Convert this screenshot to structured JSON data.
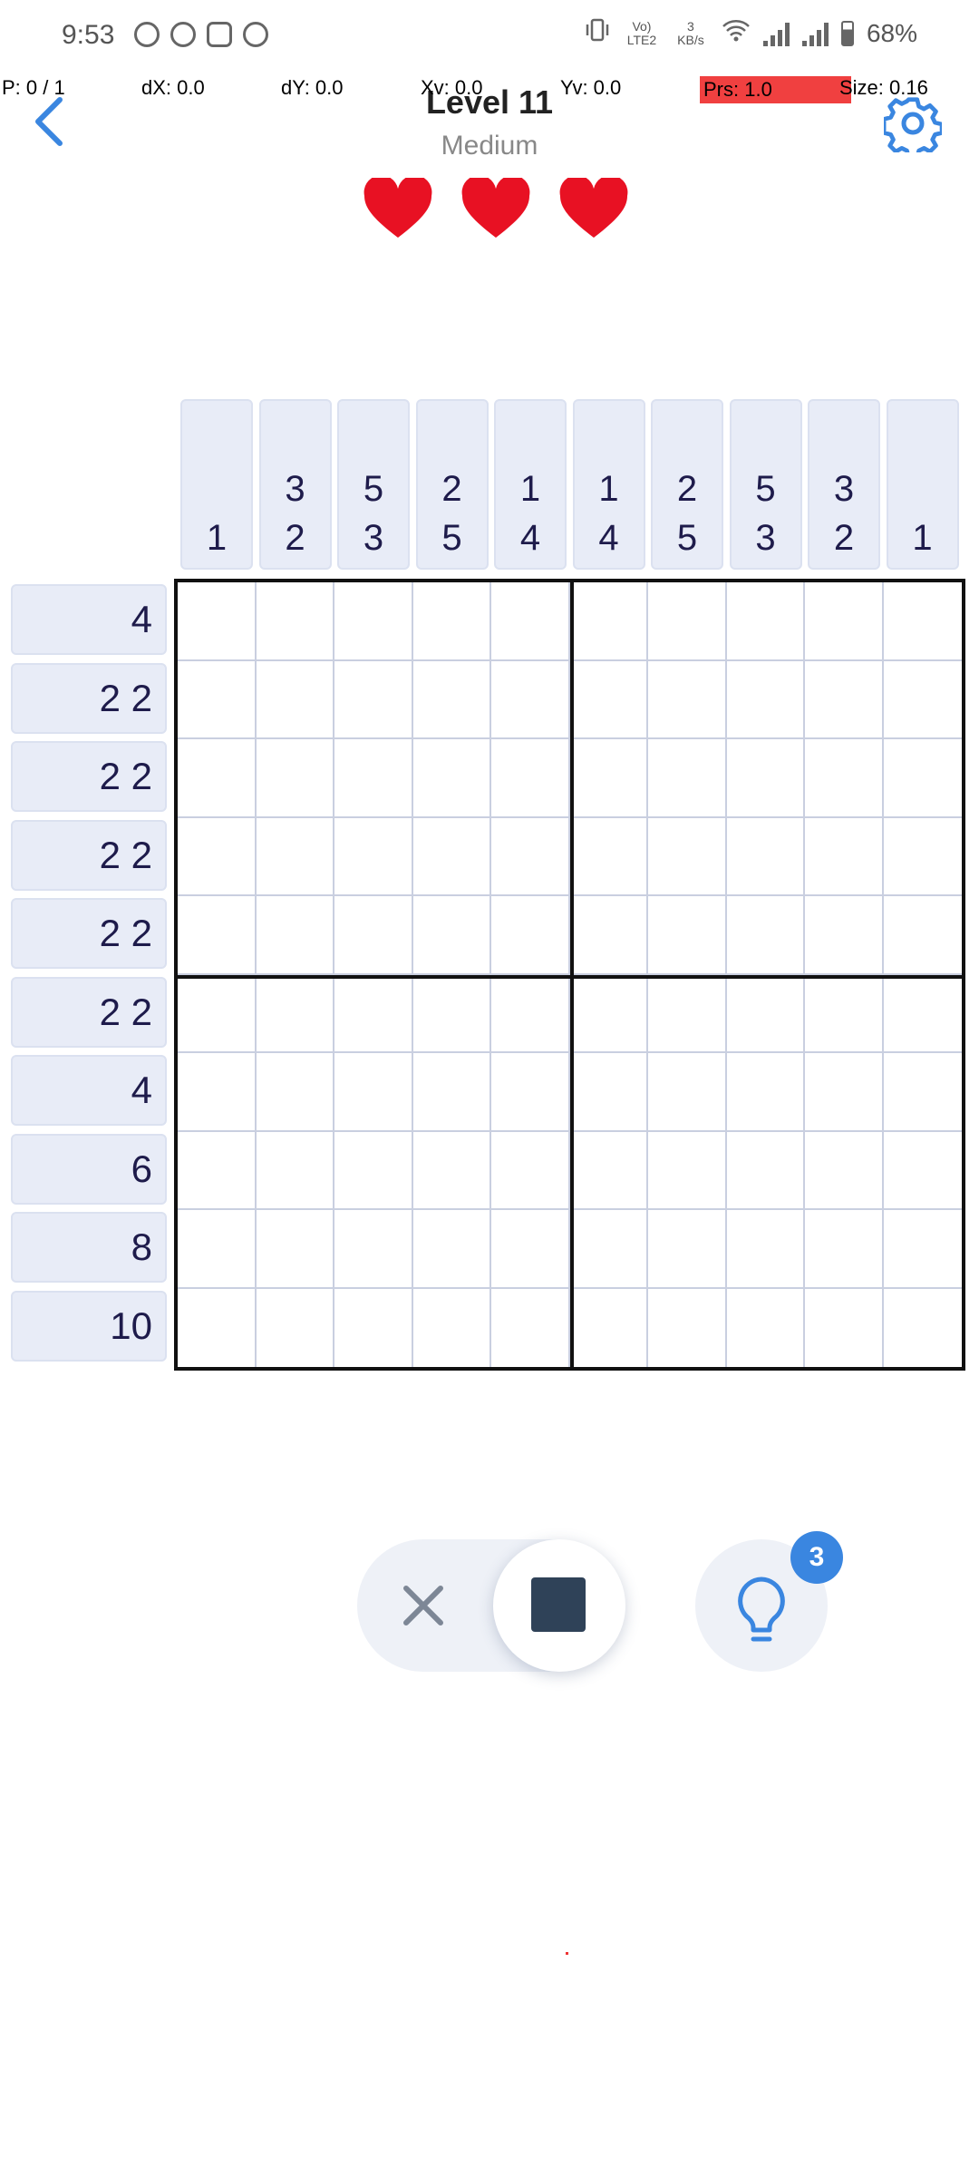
{
  "status_bar": {
    "time": "9:53",
    "lte_label": "Vo) LTE2",
    "net_speed": "3 KB/s",
    "battery": "68%"
  },
  "debug": {
    "p": "P: 0 / 1",
    "dx": "dX: 0.0",
    "dy": "dY: 0.0",
    "xv": "Xv: 0.0",
    "yv": "Yv: 0.0",
    "prs": "Prs: 1.0",
    "size": "Size: 0.16"
  },
  "header": {
    "title": "Level 11",
    "difficulty": "Medium",
    "lives": 3
  },
  "puzzle": {
    "rows": 10,
    "cols": 10,
    "column_clues": [
      [
        "1"
      ],
      [
        "3",
        "2"
      ],
      [
        "5",
        "3"
      ],
      [
        "2",
        "5"
      ],
      [
        "1",
        "4"
      ],
      [
        "1",
        "4"
      ],
      [
        "2",
        "5"
      ],
      [
        "5",
        "3"
      ],
      [
        "3",
        "2"
      ],
      [
        "1"
      ]
    ],
    "row_clues": [
      "4",
      "2 2",
      "2 2",
      "2 2",
      "2 2",
      "2 2",
      "4",
      "6",
      "8",
      "10"
    ]
  },
  "controls": {
    "active_mode": "fill",
    "hints_remaining": "3"
  },
  "colors": {
    "accent": "#3a86e0",
    "clue_bg": "#e8ecf7",
    "heart": "#e81123",
    "fill": "#2f4258"
  }
}
